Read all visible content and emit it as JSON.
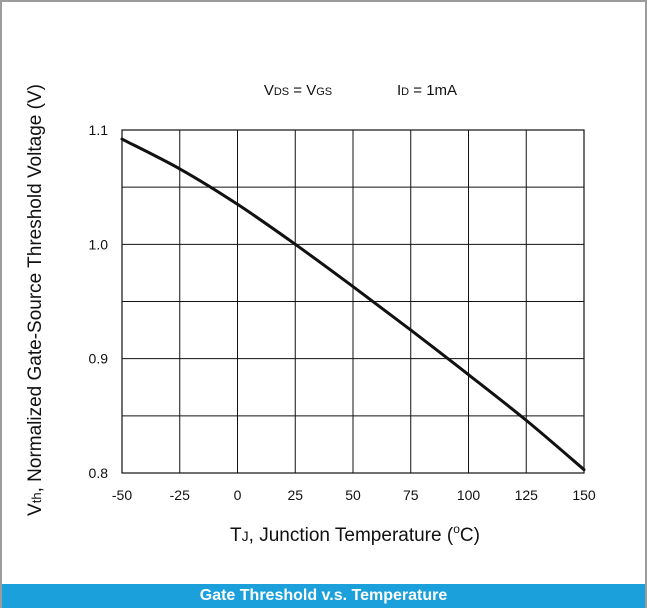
{
  "chart_data": {
    "type": "line",
    "title": "",
    "annotation": {
      "left": "VDS = VGS",
      "right": "ID = 1mA"
    },
    "xlabel": "TJ, Junction Temperature (°C)",
    "ylabel": "Vth, Normalized Gate-Source Threshold Voltage (V)",
    "xlim": [
      -50,
      150
    ],
    "ylim": [
      0.8,
      1.1
    ],
    "xticks": [
      -50,
      -25,
      0,
      25,
      50,
      75,
      100,
      125,
      150
    ],
    "xtick_labels": [
      "-50",
      "-25",
      "0",
      "25",
      "50",
      "75",
      "100",
      "125",
      "150"
    ],
    "yticks": [
      0.8,
      0.9,
      1.0,
      1.1
    ],
    "ytick_labels": [
      "0.8",
      "0.9",
      "1.0",
      "1.1"
    ],
    "grid": true,
    "legend": "none",
    "line_color": "#111111",
    "series": [
      {
        "x": [
          -50,
          -25,
          0,
          25,
          50,
          75,
          100,
          125,
          150
        ],
        "y": [
          1.092,
          1.066,
          1.035,
          1.0,
          0.963,
          0.925,
          0.886,
          0.846,
          0.803
        ]
      }
    ]
  },
  "caption": "Gate Threshold  v.s. Temperature",
  "colors": {
    "caption_bg": "#1ba0dc",
    "frame": "#9c9c9c"
  }
}
